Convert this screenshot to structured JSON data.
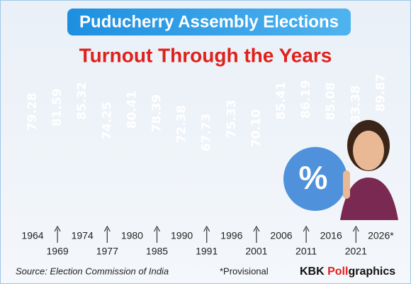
{
  "chart_data": {
    "type": "bar",
    "header": "Puducherry Assembly Elections",
    "title": "Turnout Through the Years",
    "categories": [
      "1964",
      "1969",
      "1974",
      "1977",
      "1980",
      "1985",
      "1990",
      "1991",
      "1996",
      "2001",
      "2006",
      "2011",
      "2016",
      "2021",
      "2026*"
    ],
    "values": [
      79.28,
      81.59,
      85.32,
      74.25,
      80.41,
      78.39,
      72.38,
      67.73,
      75.33,
      70.1,
      85.41,
      86.19,
      85.08,
      83.38,
      89.87
    ],
    "value_labels": [
      "79.28",
      "81.59",
      "85.32",
      "74.25",
      "80.41",
      "78.39",
      "72.38",
      "67.73",
      "75.33",
      "70.10",
      "85.41",
      "86.19",
      "85.08",
      "83.38",
      "89.87"
    ],
    "color": "#1f6fc6",
    "badge": "%",
    "source": "Source: Election Commission of India",
    "footnote": "*Provisional",
    "brand": [
      "KBK ",
      "Poll",
      "graphics"
    ]
  }
}
